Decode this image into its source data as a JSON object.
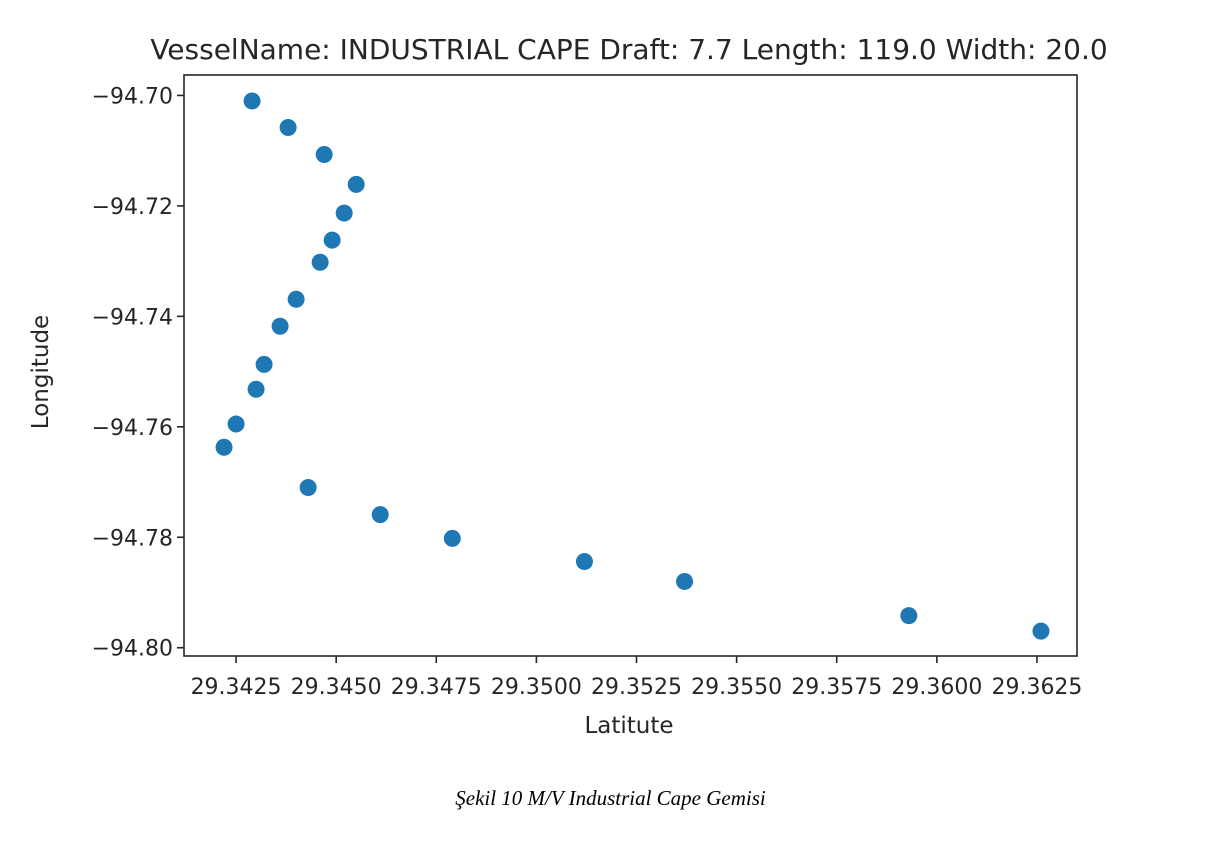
{
  "chart_data": {
    "type": "scatter",
    "title": "VesselName: INDUSTRIAL CAPE Draft: 7.7 Length: 119.0 Width: 20.0",
    "xlabel": "Latitute",
    "ylabel": "Longitude",
    "xlim": [
      29.3412,
      29.3635
    ],
    "ylim": [
      -94.8015,
      -94.6963
    ],
    "xticks": [
      29.3425,
      29.345,
      29.3475,
      29.35,
      29.3525,
      29.355,
      29.3575,
      29.36,
      29.3625
    ],
    "xtick_labels": [
      "29.3425",
      "29.3450",
      "29.3475",
      "29.3500",
      "29.3525",
      "29.3550",
      "29.3575",
      "29.3600",
      "29.3625"
    ],
    "yticks": [
      -94.7,
      -94.72,
      -94.74,
      -94.76,
      -94.78,
      -94.8
    ],
    "ytick_labels": [
      "−94.70",
      "−94.72",
      "−94.74",
      "−94.76",
      "−94.78",
      "−94.80"
    ],
    "grid": false,
    "marker_color": "#1f77b4",
    "points": [
      {
        "x": 29.3429,
        "y": -94.701
      },
      {
        "x": 29.3438,
        "y": -94.7058
      },
      {
        "x": 29.3447,
        "y": -94.7107
      },
      {
        "x": 29.3455,
        "y": -94.7161
      },
      {
        "x": 29.3452,
        "y": -94.7213
      },
      {
        "x": 29.3449,
        "y": -94.7262
      },
      {
        "x": 29.3446,
        "y": -94.7302
      },
      {
        "x": 29.344,
        "y": -94.7369
      },
      {
        "x": 29.3436,
        "y": -94.7418
      },
      {
        "x": 29.3432,
        "y": -94.7487
      },
      {
        "x": 29.343,
        "y": -94.7532
      },
      {
        "x": 29.3425,
        "y": -94.7595
      },
      {
        "x": 29.3422,
        "y": -94.7637
      },
      {
        "x": 29.3443,
        "y": -94.771
      },
      {
        "x": 29.3461,
        "y": -94.7759
      },
      {
        "x": 29.3479,
        "y": -94.7802
      },
      {
        "x": 29.3512,
        "y": -94.7844
      },
      {
        "x": 29.3537,
        "y": -94.788
      },
      {
        "x": 29.3593,
        "y": -94.7942
      },
      {
        "x": 29.3626,
        "y": -94.797
      }
    ]
  },
  "caption": "Şekil 10 M/V Industrial Cape Gemisi"
}
